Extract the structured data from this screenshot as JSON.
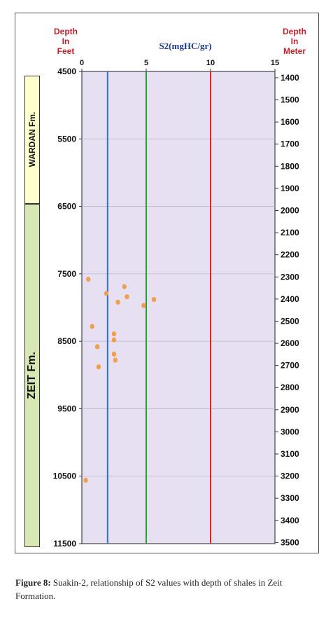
{
  "left_axis_label": "Depth\nIn\nFeet",
  "right_axis_label": "Depth\nIn\nMeter",
  "formations": [
    {
      "name": "WARDAN Fm.",
      "top_ft": 4500,
      "bottom_ft": 6400,
      "color": "#ffffcc"
    },
    {
      "name": "ZEIT Fm.",
      "top_ft": 6400,
      "bottom_ft": 11500,
      "color": "#d7e8b4"
    }
  ],
  "caption": {
    "label": "Figure 8:",
    "text": "Suakin-2, relationship of S2 values with depth of shales in Zeit Formation."
  },
  "chart_data": {
    "type": "scatter",
    "title": "S2(mgHC/gr)",
    "x_axis": {
      "label": "S2(mgHC/gr)",
      "range": [
        0,
        15
      ],
      "ticks": [
        0,
        5,
        10,
        15
      ],
      "position": "top"
    },
    "y_axis_left": {
      "label": "Depth In Feet",
      "range": [
        4500,
        11500
      ],
      "ticks": [
        4500,
        5500,
        6500,
        7500,
        8500,
        9500,
        10500,
        11500
      ],
      "inverted": true
    },
    "y_axis_right": {
      "label": "Depth In Meter",
      "ticks": [
        1400,
        1500,
        1600,
        1700,
        1800,
        1900,
        2000,
        2100,
        2200,
        2300,
        2400,
        2500,
        2600,
        2700,
        2800,
        2900,
        3000,
        3100,
        3200,
        3300,
        3400,
        3500
      ],
      "range": [
        1372,
        3505
      ]
    },
    "reference_lines": [
      {
        "x": 2,
        "color": "#2f6fd0"
      },
      {
        "x": 5,
        "color": "#2a9a3a"
      },
      {
        "x": 10,
        "color": "#d42a2a"
      }
    ],
    "grid": true,
    "plot_background": "#e7e0f3",
    "point_color": "#f0a04b",
    "points": [
      {
        "x": 0.5,
        "y": 7580
      },
      {
        "x": 3.3,
        "y": 7690
      },
      {
        "x": 1.9,
        "y": 7790
      },
      {
        "x": 3.5,
        "y": 7840
      },
      {
        "x": 5.6,
        "y": 7880
      },
      {
        "x": 2.8,
        "y": 7920
      },
      {
        "x": 4.8,
        "y": 7970
      },
      {
        "x": 0.8,
        "y": 8280
      },
      {
        "x": 2.5,
        "y": 8390
      },
      {
        "x": 2.5,
        "y": 8480
      },
      {
        "x": 1.2,
        "y": 8580
      },
      {
        "x": 2.5,
        "y": 8690
      },
      {
        "x": 2.6,
        "y": 8780
      },
      {
        "x": 1.3,
        "y": 8880
      },
      {
        "x": 0.3,
        "y": 10560
      }
    ]
  }
}
